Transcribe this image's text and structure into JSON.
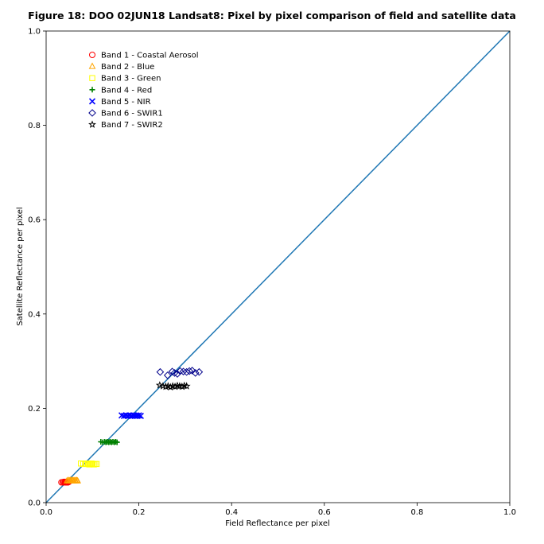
{
  "chart_data": {
    "type": "scatter",
    "title": "Figure 18: DOO 02JUN18  Landsat8: Pixel by pixel comparison of field and satellite data",
    "xlabel": "Field Reflectance per pixel",
    "ylabel": "Satellite Reflectance per pixel",
    "xlim": [
      0.0,
      1.0
    ],
    "ylim": [
      0.0,
      1.0
    ],
    "xticks": [
      "0.0",
      "0.2",
      "0.4",
      "0.6",
      "0.8",
      "1.0"
    ],
    "yticks": [
      "0.0",
      "0.2",
      "0.4",
      "0.6",
      "0.8",
      "1.0"
    ],
    "grid": false,
    "legend_position": "top-left",
    "reference_line": {
      "from": [
        0,
        0
      ],
      "to": [
        1,
        1
      ],
      "color": "#1f77b4"
    },
    "series": [
      {
        "name": "Band 1 - Coastal Aerosol",
        "marker": "circle",
        "color": "#ff0000",
        "x": [
          0.033,
          0.036,
          0.038,
          0.04,
          0.041,
          0.042,
          0.043,
          0.044,
          0.045,
          0.046,
          0.047,
          0.049
        ],
        "y": [
          0.043,
          0.043,
          0.044,
          0.043,
          0.044,
          0.043,
          0.044,
          0.043,
          0.044,
          0.043,
          0.043,
          0.044
        ]
      },
      {
        "name": "Band 2 - Blue",
        "marker": "triangle",
        "color": "#ffa500",
        "x": [
          0.045,
          0.048,
          0.05,
          0.052,
          0.054,
          0.056,
          0.058,
          0.06,
          0.062,
          0.064,
          0.066,
          0.068
        ],
        "y": [
          0.046,
          0.047,
          0.046,
          0.047,
          0.046,
          0.047,
          0.047,
          0.046,
          0.047,
          0.046,
          0.047,
          0.046
        ]
      },
      {
        "name": "Band 3 - Green",
        "marker": "square",
        "color": "#ffff00",
        "x": [
          0.075,
          0.08,
          0.084,
          0.087,
          0.09,
          0.093,
          0.096,
          0.098,
          0.1,
          0.103,
          0.106,
          0.109
        ],
        "y": [
          0.083,
          0.082,
          0.082,
          0.083,
          0.082,
          0.081,
          0.082,
          0.083,
          0.082,
          0.081,
          0.082,
          0.082
        ]
      },
      {
        "name": "Band 4 - Red",
        "marker": "plus",
        "color": "#008000",
        "x": [
          0.118,
          0.122,
          0.126,
          0.129,
          0.132,
          0.135,
          0.138,
          0.141,
          0.144,
          0.147,
          0.15,
          0.153
        ],
        "y": [
          0.129,
          0.128,
          0.129,
          0.128,
          0.129,
          0.128,
          0.129,
          0.128,
          0.129,
          0.128,
          0.129,
          0.128
        ]
      },
      {
        "name": "Band 5 - NIR",
        "marker": "x",
        "color": "#0000ff",
        "x": [
          0.163,
          0.168,
          0.172,
          0.176,
          0.18,
          0.184,
          0.188,
          0.191,
          0.194,
          0.197,
          0.2,
          0.204
        ],
        "y": [
          0.185,
          0.184,
          0.185,
          0.184,
          0.185,
          0.184,
          0.185,
          0.184,
          0.185,
          0.184,
          0.185,
          0.184
        ]
      },
      {
        "name": "Band 6 - SWIR1",
        "marker": "diamond",
        "color": "#00008b",
        "x": [
          0.246,
          0.262,
          0.272,
          0.277,
          0.283,
          0.289,
          0.296,
          0.303,
          0.309,
          0.315,
          0.322,
          0.33
        ],
        "y": [
          0.277,
          0.27,
          0.278,
          0.275,
          0.273,
          0.279,
          0.278,
          0.277,
          0.279,
          0.28,
          0.275,
          0.277
        ]
      },
      {
        "name": "Band 7 - SWIR2",
        "marker": "star",
        "color": "#000000",
        "x": [
          0.245,
          0.252,
          0.258,
          0.263,
          0.268,
          0.273,
          0.278,
          0.283,
          0.288,
          0.293,
          0.298,
          0.303
        ],
        "y": [
          0.249,
          0.247,
          0.246,
          0.247,
          0.245,
          0.247,
          0.246,
          0.248,
          0.247,
          0.246,
          0.248,
          0.247
        ]
      }
    ]
  }
}
